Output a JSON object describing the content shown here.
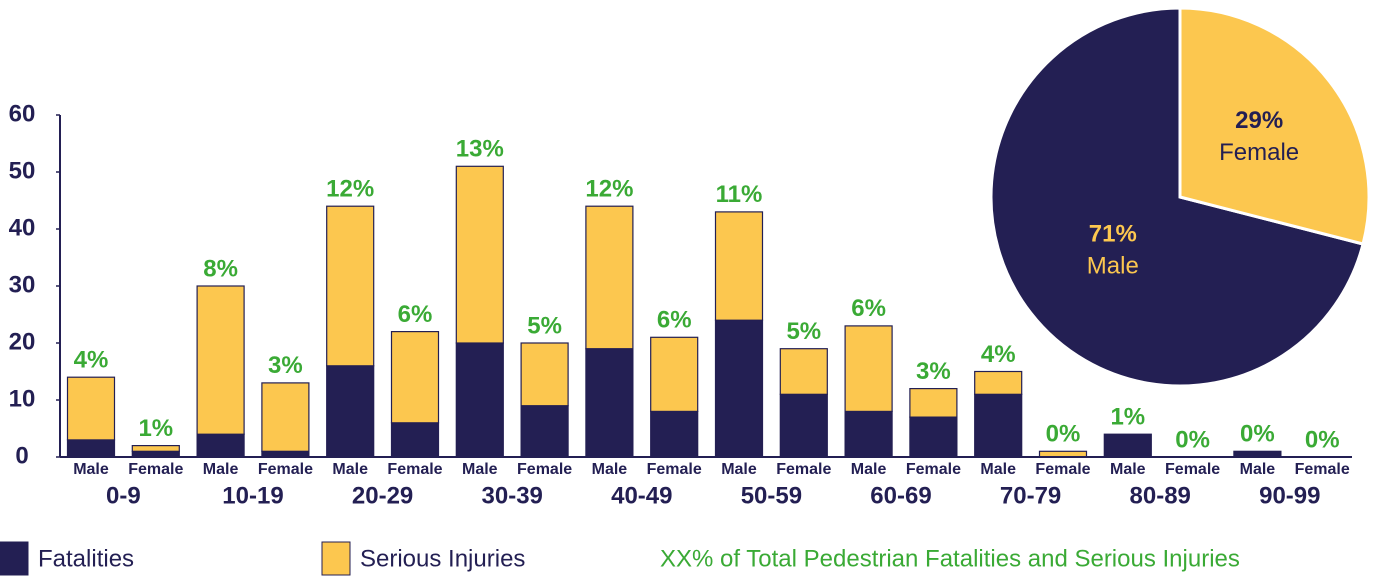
{
  "chart_data": [
    {
      "type": "bar",
      "stacked": true,
      "categories": [
        "Male",
        "Female",
        "Male",
        "Female",
        "Male",
        "Female",
        "Male",
        "Female",
        "Male",
        "Female",
        "Male",
        "Female",
        "Male",
        "Female",
        "Male",
        "Female",
        "Male",
        "Female",
        "Male",
        "Female"
      ],
      "groups": [
        "0-9",
        "10-19",
        "20-29",
        "30-39",
        "40-49",
        "50-59",
        "60-69",
        "70-79",
        "80-89",
        "90-99"
      ],
      "series": [
        {
          "name": "Fatalities",
          "color": "#231f53",
          "values": [
            3,
            1,
            4,
            1,
            16,
            6,
            20,
            9,
            19,
            8,
            24,
            11,
            8,
            7,
            11,
            0,
            4,
            0,
            1,
            0
          ]
        },
        {
          "name": "Serious Injuries",
          "color": "#fcc74f",
          "values": [
            11,
            1,
            26,
            12,
            28,
            16,
            31,
            11,
            25,
            13,
            19,
            8,
            15,
            5,
            4,
            1,
            0,
            0,
            0,
            0
          ]
        }
      ],
      "annotations": [
        "4%",
        "1%",
        "8%",
        "3%",
        "12%",
        "6%",
        "13%",
        "5%",
        "12%",
        "6%",
        "11%",
        "5%",
        "6%",
        "3%",
        "4%",
        "0%",
        "1%",
        "0%",
        "0%",
        "0%"
      ],
      "annotation_color": "#3aaa35",
      "legend_note": "XX% of Total Pedestrian Fatalities and Serious Injuries",
      "ylim": [
        0,
        60
      ],
      "yticks": [
        0,
        10,
        20,
        30,
        40,
        50,
        60
      ],
      "grid": false
    },
    {
      "type": "pie",
      "categories": [
        "Male",
        "Female"
      ],
      "values": [
        71,
        29
      ],
      "value_labels": [
        "71%",
        "29%"
      ],
      "colors": [
        "#231f53",
        "#fcc74f"
      ]
    }
  ]
}
